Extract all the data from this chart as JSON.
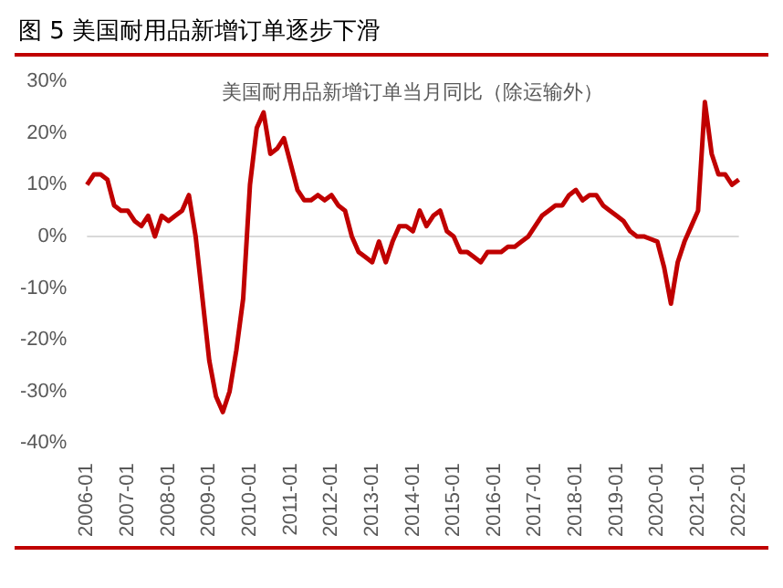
{
  "chart_data": {
    "type": "line",
    "title": "图 5 美国耐用品新增订单逐步下滑",
    "subtitle": "美国耐用品新增订单当月同比（除运输外）",
    "categories": [
      "2006-01",
      null,
      null,
      null,
      null,
      null,
      "2007-01",
      null,
      null,
      null,
      null,
      null,
      "2008-01",
      null,
      null,
      null,
      null,
      null,
      "2009-01",
      null,
      null,
      null,
      null,
      null,
      "2010-01",
      null,
      null,
      null,
      null,
      null,
      "2011-01",
      null,
      null,
      null,
      null,
      null,
      "2012-01",
      null,
      null,
      null,
      null,
      null,
      "2013-01",
      null,
      null,
      null,
      null,
      null,
      "2014-01",
      null,
      null,
      null,
      null,
      null,
      "2015-01",
      null,
      null,
      null,
      null,
      null,
      "2016-01",
      null,
      null,
      null,
      null,
      null,
      "2017-01",
      null,
      null,
      null,
      null,
      null,
      "2018-01",
      null,
      null,
      null,
      null,
      null,
      "2019-01",
      null,
      null,
      null,
      null,
      null,
      "2020-01",
      null,
      null,
      null,
      null,
      null,
      "2021-01",
      null,
      null,
      null,
      null,
      null,
      "2022-01"
    ],
    "series": [
      {
        "color": "#c00000",
        "values": [
          10,
          12,
          12,
          11,
          6,
          5,
          5,
          3,
          2,
          4,
          0,
          4,
          3,
          4,
          5,
          8,
          0,
          -12,
          -24,
          -31,
          -34,
          -30,
          -22,
          -12,
          10,
          21,
          24,
          16,
          17,
          19,
          14,
          9,
          7,
          7,
          8,
          7,
          8,
          6,
          5,
          0,
          -3,
          -4,
          -5,
          -1,
          -5,
          -1,
          2,
          2,
          1,
          5,
          2,
          4,
          5,
          1,
          0,
          -3,
          -3,
          -4,
          -5,
          -3,
          -3,
          -3,
          -2,
          -2,
          -1,
          0,
          2,
          4,
          5,
          6,
          6,
          8,
          9,
          7,
          8,
          8,
          6,
          5,
          4,
          3,
          1,
          0,
          0,
          -0.5,
          -1,
          -6,
          -13,
          -5,
          -1,
          2,
          5,
          26,
          16,
          12,
          12,
          10,
          11
        ]
      }
    ],
    "ylim": [
      -40,
      30
    ],
    "yticks": [
      {
        "value": 30,
        "label": "30%"
      },
      {
        "value": 20,
        "label": "20%"
      },
      {
        "value": 10,
        "label": "10%"
      },
      {
        "value": 0,
        "label": "0%"
      },
      {
        "value": -10,
        "label": "-10%"
      },
      {
        "value": -20,
        "label": "-20%"
      },
      {
        "value": -30,
        "label": "-30%"
      },
      {
        "value": -40,
        "label": "-40%"
      }
    ],
    "grid": false,
    "ref_lines": [
      {
        "axis": "y",
        "value": 0,
        "color": "#d9d9d9"
      }
    ],
    "legend": false,
    "marker": "none",
    "line_style": "solid"
  }
}
